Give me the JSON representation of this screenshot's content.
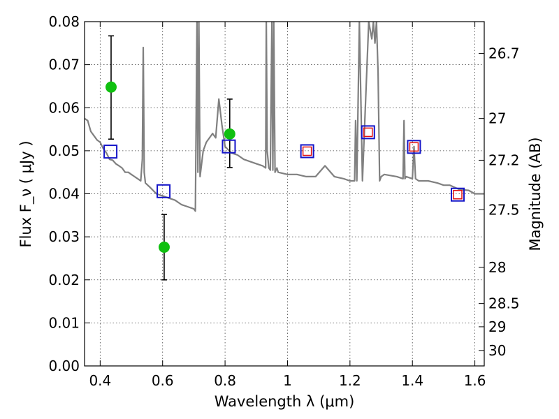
{
  "chart_data": {
    "type": "scatter",
    "xlabel": "Wavelength  λ (μm)",
    "ylabel": "Flux  F_ν  ( μJy )",
    "ylabel_right": "Magnitude (AB)",
    "xlim": [
      0.35,
      1.63
    ],
    "ylim": [
      0,
      0.08
    ],
    "grid": true,
    "x_ticks": [
      0.4,
      0.6,
      0.8,
      1.0,
      1.2,
      1.4,
      1.6
    ],
    "x_tick_labels": [
      "0.4",
      "0.6",
      "0.8",
      "1",
      "1.2",
      "1.4",
      "1.6"
    ],
    "y_ticks": [
      0.0,
      0.01,
      0.02,
      0.03,
      0.04,
      0.05,
      0.06,
      0.07,
      0.08
    ],
    "y_tick_labels": [
      "0.00",
      "0.01",
      "0.02",
      "0.03",
      "0.04",
      "0.05",
      "0.06",
      "0.07",
      "0.08"
    ],
    "right_ticks": [
      {
        "flux": 0.0726,
        "label": "26.7"
      },
      {
        "flux": 0.0575,
        "label": "27"
      },
      {
        "flux": 0.0478,
        "label": "27.2"
      },
      {
        "flux": 0.0363,
        "label": "27.5"
      },
      {
        "flux": 0.0229,
        "label": "28"
      },
      {
        "flux": 0.0145,
        "label": "28.5"
      },
      {
        "flux": 0.0091,
        "label": "29"
      },
      {
        "flux": 0.0036,
        "label": "30"
      }
    ],
    "spectrum": {
      "color": "#808080",
      "x": [
        0.35,
        0.36,
        0.37,
        0.38,
        0.39,
        0.4,
        0.41,
        0.42,
        0.43,
        0.44,
        0.45,
        0.46,
        0.47,
        0.48,
        0.49,
        0.5,
        0.51,
        0.52,
        0.53,
        0.535,
        0.538,
        0.541,
        0.545,
        0.56,
        0.58,
        0.6,
        0.62,
        0.64,
        0.66,
        0.68,
        0.7,
        0.705,
        0.71,
        0.713,
        0.716,
        0.72,
        0.73,
        0.74,
        0.75,
        0.76,
        0.77,
        0.78,
        0.79,
        0.8,
        0.82,
        0.84,
        0.86,
        0.88,
        0.9,
        0.92,
        0.93,
        0.932,
        0.935,
        0.94,
        0.945,
        0.95,
        0.953,
        0.956,
        0.96,
        0.963,
        0.966,
        0.97,
        1.0,
        1.03,
        1.06,
        1.09,
        1.12,
        1.15,
        1.18,
        1.2,
        1.215,
        1.218,
        1.222,
        1.23,
        1.24,
        1.26,
        1.27,
        1.275,
        1.28,
        1.285,
        1.29,
        1.295,
        1.3,
        1.31,
        1.35,
        1.37,
        1.373,
        1.376,
        1.38,
        1.4,
        1.405,
        1.41,
        1.42,
        1.45,
        1.48,
        1.5,
        1.52,
        1.55,
        1.58,
        1.6,
        1.63
      ],
      "y": [
        0.0575,
        0.057,
        0.0545,
        0.0535,
        0.0525,
        0.052,
        0.0505,
        0.0495,
        0.048,
        0.0478,
        0.047,
        0.0465,
        0.046,
        0.045,
        0.045,
        0.0445,
        0.044,
        0.0435,
        0.043,
        0.048,
        0.074,
        0.045,
        0.0425,
        0.0415,
        0.04,
        0.0395,
        0.039,
        0.0385,
        0.0375,
        0.037,
        0.0365,
        0.036,
        0.08,
        0.045,
        0.08,
        0.044,
        0.05,
        0.052,
        0.053,
        0.054,
        0.053,
        0.062,
        0.056,
        0.051,
        0.0495,
        0.049,
        0.048,
        0.0475,
        0.047,
        0.0465,
        0.046,
        0.08,
        0.05,
        0.046,
        0.0455,
        0.08,
        0.0455,
        0.08,
        0.045,
        0.0455,
        0.046,
        0.045,
        0.0445,
        0.0445,
        0.044,
        0.044,
        0.0465,
        0.044,
        0.0435,
        0.043,
        0.043,
        0.057,
        0.043,
        0.08,
        0.043,
        0.08,
        0.076,
        0.08,
        0.075,
        0.08,
        0.068,
        0.043,
        0.044,
        0.0445,
        0.044,
        0.0435,
        0.057,
        0.0435,
        0.044,
        0.0435,
        0.051,
        0.0435,
        0.043,
        0.043,
        0.0425,
        0.042,
        0.042,
        0.041,
        0.0408,
        0.04,
        0.04
      ]
    },
    "model_points": {
      "color": "#1414c8",
      "x": [
        0.433,
        0.603,
        0.812,
        1.063,
        1.258,
        1.405,
        1.545
      ],
      "y": [
        0.0498,
        0.0406,
        0.051,
        0.0499,
        0.0543,
        0.0509,
        0.0398
      ]
    },
    "observed_points": {
      "color": "#e01010",
      "x": [
        1.063,
        1.258,
        1.405,
        1.545
      ],
      "y": [
        0.0499,
        0.0543,
        0.0509,
        0.0398
      ]
    },
    "photometry": {
      "color": "#10c010",
      "points": [
        {
          "x": 0.435,
          "y": 0.0648,
          "ylo": 0.0527,
          "yhi": 0.0767
        },
        {
          "x": 0.605,
          "y": 0.0276,
          "ylo": 0.02,
          "yhi": 0.0352
        },
        {
          "x": 0.815,
          "y": 0.0539,
          "ylo": 0.0461,
          "yhi": 0.062
        }
      ]
    }
  }
}
